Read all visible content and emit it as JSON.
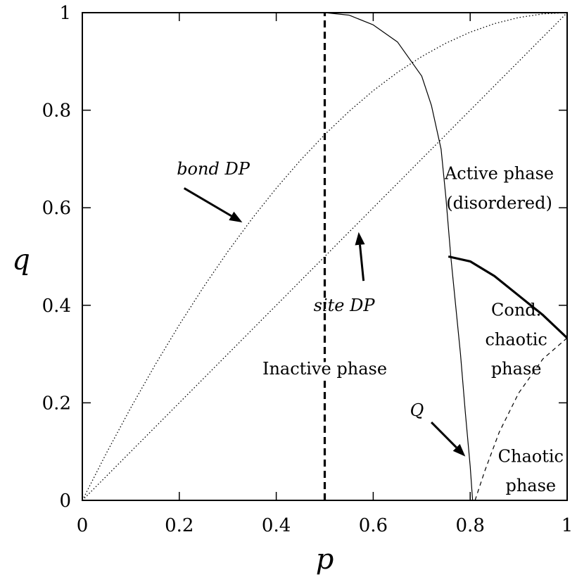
{
  "chart_data": {
    "type": "line",
    "xlabel": "p",
    "ylabel": "q",
    "xlim": [
      0,
      1
    ],
    "ylim": [
      0,
      1
    ],
    "x_ticks": [
      "0",
      "0.2",
      "0.4",
      "0.6",
      "0.8",
      "1"
    ],
    "y_ticks": [
      "0",
      "0.2",
      "0.4",
      "0.6",
      "0.8",
      "1"
    ],
    "grid": false,
    "series": [
      {
        "name": "bond DP",
        "style": "dotted",
        "points": [
          [
            0,
            0
          ],
          [
            0.05,
            0.0975
          ],
          [
            0.1,
            0.19
          ],
          [
            0.15,
            0.2775
          ],
          [
            0.2,
            0.36
          ],
          [
            0.25,
            0.4375
          ],
          [
            0.3,
            0.51
          ],
          [
            0.35,
            0.5775
          ],
          [
            0.4,
            0.64
          ],
          [
            0.45,
            0.6975
          ],
          [
            0.5,
            0.75
          ],
          [
            0.55,
            0.7975
          ],
          [
            0.6,
            0.84
          ],
          [
            0.65,
            0.8775
          ],
          [
            0.7,
            0.91
          ],
          [
            0.75,
            0.9375
          ],
          [
            0.8,
            0.96
          ],
          [
            0.85,
            0.9775
          ],
          [
            0.9,
            0.99
          ],
          [
            0.95,
            0.9975
          ],
          [
            1,
            1
          ]
        ]
      },
      {
        "name": "site DP",
        "style": "dotted",
        "points": [
          [
            0,
            0
          ],
          [
            1,
            1
          ]
        ]
      },
      {
        "style": "thick-dashed",
        "points": [
          [
            0.5,
            0
          ],
          [
            0.5,
            1
          ]
        ]
      },
      {
        "style": "solid",
        "points": [
          [
            0.5,
            1
          ],
          [
            0.55,
            0.995
          ],
          [
            0.6,
            0.975
          ],
          [
            0.65,
            0.94
          ],
          [
            0.7,
            0.87
          ],
          [
            0.72,
            0.81
          ],
          [
            0.74,
            0.72
          ],
          [
            0.75,
            0.62
          ],
          [
            0.76,
            0.5
          ],
          [
            0.77,
            0.4
          ],
          [
            0.78,
            0.3
          ],
          [
            0.79,
            0.18
          ],
          [
            0.8,
            0.07
          ],
          [
            0.805,
            0
          ]
        ]
      },
      {
        "style": "thick",
        "points": [
          [
            0.755,
            0.5
          ],
          [
            0.8,
            0.49
          ],
          [
            0.85,
            0.46
          ],
          [
            0.9,
            0.42
          ],
          [
            0.95,
            0.38
          ],
          [
            1,
            0.333
          ]
        ]
      },
      {
        "style": "dashed",
        "points": [
          [
            0.81,
            0
          ],
          [
            0.83,
            0.06
          ],
          [
            0.86,
            0.14
          ],
          [
            0.9,
            0.22
          ],
          [
            0.95,
            0.29
          ],
          [
            1,
            0.333
          ]
        ]
      }
    ],
    "annotations": [
      {
        "text": "bond DP",
        "italic": true,
        "x": 0.27,
        "y": 0.68
      },
      {
        "text": "site DP",
        "italic": true,
        "x": 0.54,
        "y": 0.4
      },
      {
        "text": "Active phase",
        "x": 0.86,
        "y": 0.67
      },
      {
        "text": "(disordered)",
        "x": 0.86,
        "y": 0.61
      },
      {
        "text": "Cond.",
        "x": 0.895,
        "y": 0.39
      },
      {
        "text": "chaotic",
        "x": 0.895,
        "y": 0.33
      },
      {
        "text": "phase",
        "x": 0.895,
        "y": 0.27
      },
      {
        "text": "Inactive phase",
        "x": 0.5,
        "y": 0.27
      },
      {
        "text": "Chaotic",
        "x": 0.925,
        "y": 0.09
      },
      {
        "text": "phase",
        "x": 0.925,
        "y": 0.03
      },
      {
        "text": "Q",
        "italic": true,
        "x": 0.69,
        "y": 0.185
      }
    ],
    "arrows": [
      {
        "from": [
          0.21,
          0.64
        ],
        "to": [
          0.33,
          0.57
        ]
      },
      {
        "from": [
          0.58,
          0.45
        ],
        "to": [
          0.57,
          0.55
        ]
      },
      {
        "from": [
          0.72,
          0.16
        ],
        "to": [
          0.79,
          0.09
        ]
      }
    ]
  }
}
